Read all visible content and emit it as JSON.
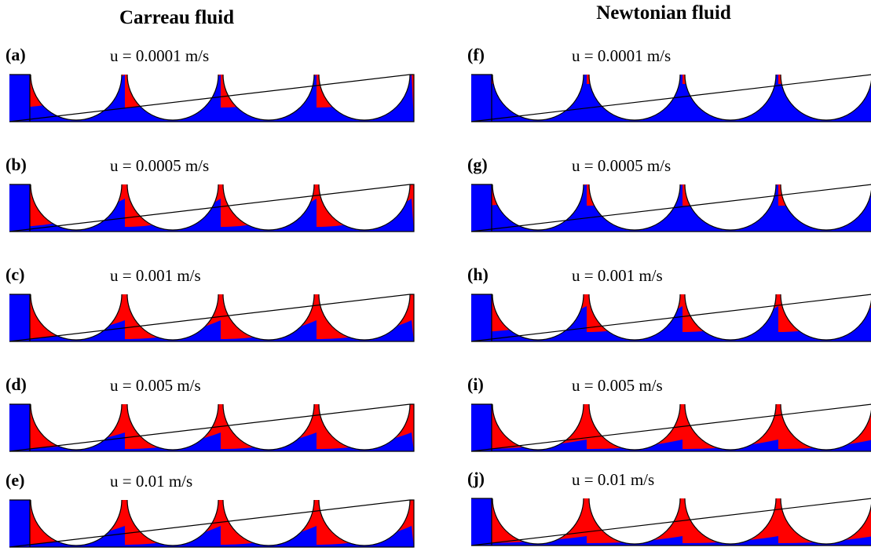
{
  "columns": [
    {
      "title": "Carreau fluid",
      "panels": [
        {
          "label": "(a)",
          "caption": "u = 0.0001 m/s"
        },
        {
          "label": "(b)",
          "caption": "u = 0.0005 m/s"
        },
        {
          "label": "(c)",
          "caption": "u = 0.001 m/s"
        },
        {
          "label": "(d)",
          "caption": "u = 0.005 m/s"
        },
        {
          "label": "(e)",
          "caption": "u = 0.01 m/s"
        }
      ]
    },
    {
      "title": "Newtonian fluid",
      "panels": [
        {
          "label": "(f)",
          "caption": "u = 0.0001 m/s"
        },
        {
          "label": "(g)",
          "caption": "u = 0.0005 m/s"
        },
        {
          "label": "(h)",
          "caption": "u = 0.001 m/s"
        },
        {
          "label": "(i)",
          "caption": "u = 0.005 m/s"
        },
        {
          "label": "(j)",
          "caption": "u = 0.01 m/s"
        }
      ]
    }
  ]
}
